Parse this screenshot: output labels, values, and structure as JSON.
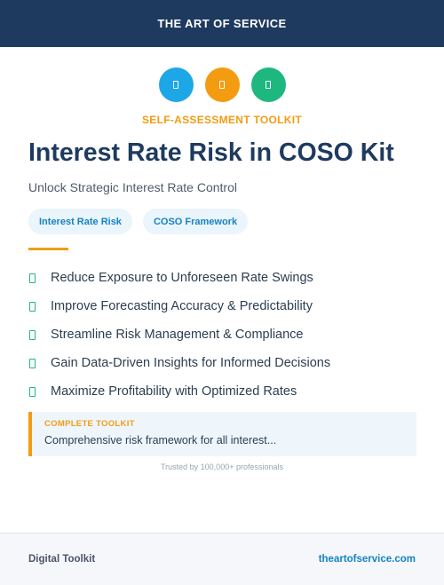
{
  "header": {
    "brand": "THE ART OF SERVICE"
  },
  "icons": [
    {
      "name": "document-icon",
      "color": "#1ea7e6"
    },
    {
      "name": "document-icon",
      "color": "#f39c12"
    },
    {
      "name": "document-icon",
      "color": "#1db87f"
    }
  ],
  "eyebrow": "SELF-ASSESSMENT TOOLKIT",
  "title": "Interest Rate Risk in COSO Kit",
  "subtitle": "Unlock Strategic Interest Rate Control",
  "tags": [
    "Interest Rate Risk",
    "COSO Framework"
  ],
  "benefits": [
    "Reduce Exposure to Unforeseen Rate Swings",
    "Improve Forecasting Accuracy & Predictability",
    "Streamline Risk Management & Compliance",
    "Gain Data-Driven Insights for Informed Decisions",
    "Maximize Profitability with Optimized Rates"
  ],
  "callout": {
    "label": "COMPLETE TOOLKIT",
    "text": "Comprehensive risk framework for all interest..."
  },
  "trusted": "Trusted by 100,000+ professionals",
  "footer": {
    "left": "Digital Toolkit",
    "right": "theartofservice.com"
  },
  "colors": {
    "navy": "#1e3a5f",
    "accent": "#f39c12",
    "blue": "#1ea7e6",
    "green": "#1db87f",
    "link": "#1683c4"
  }
}
